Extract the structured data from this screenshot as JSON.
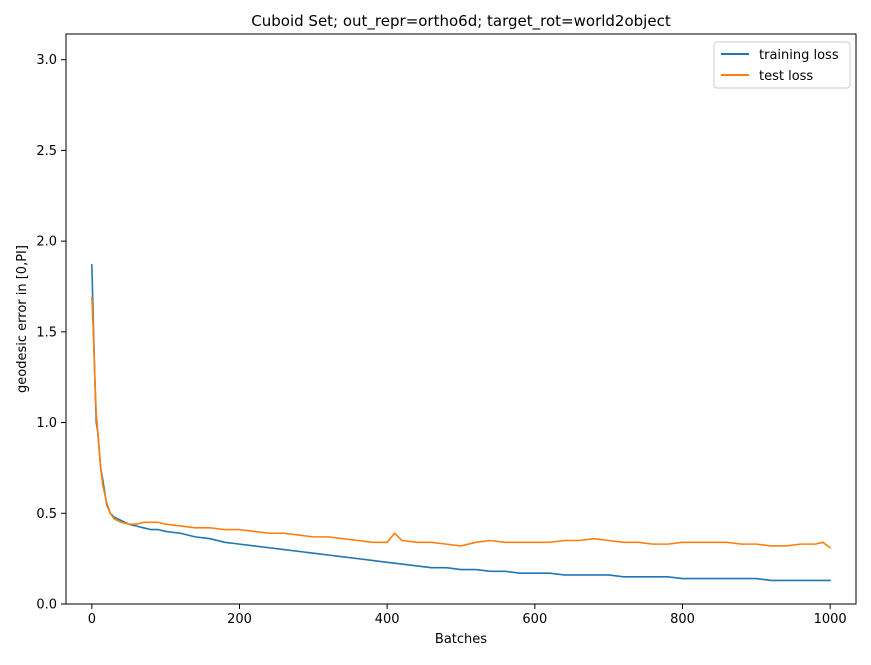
{
  "chart_data": {
    "type": "line",
    "title": "Cuboid Set; out_repr=ortho6d; target_rot=world2object",
    "xlabel": "Batches",
    "ylabel": "geodesic error in [0,PI]",
    "xlim": [
      -35,
      1035
    ],
    "ylim": [
      0,
      3.1416
    ],
    "xticks": [
      0,
      200,
      400,
      600,
      800,
      1000
    ],
    "xtick_labels": [
      "0",
      "200",
      "400",
      "600",
      "800",
      "1000"
    ],
    "yticks": [
      0.0,
      0.5,
      1.0,
      1.5,
      2.0,
      2.5,
      3.0
    ],
    "ytick_labels": [
      "0.0",
      "0.5",
      "1.0",
      "1.5",
      "2.0",
      "2.5",
      "3.0"
    ],
    "grid": false,
    "legend_position": "top-right",
    "series": [
      {
        "name": "training loss",
        "color": "#1f77b4",
        "x": [
          0,
          2,
          4,
          6,
          8,
          10,
          12,
          15,
          20,
          25,
          30,
          40,
          50,
          60,
          70,
          80,
          90,
          100,
          120,
          140,
          160,
          180,
          200,
          220,
          240,
          260,
          280,
          300,
          320,
          340,
          360,
          380,
          400,
          420,
          440,
          460,
          480,
          500,
          520,
          540,
          560,
          580,
          600,
          620,
          640,
          660,
          680,
          700,
          720,
          740,
          760,
          780,
          800,
          820,
          840,
          860,
          880,
          900,
          920,
          940,
          960,
          980,
          1000
        ],
        "values": [
          1.87,
          1.55,
          1.25,
          1.0,
          0.95,
          0.85,
          0.75,
          0.68,
          0.55,
          0.5,
          0.48,
          0.46,
          0.44,
          0.43,
          0.42,
          0.41,
          0.41,
          0.4,
          0.39,
          0.37,
          0.36,
          0.34,
          0.33,
          0.32,
          0.31,
          0.3,
          0.29,
          0.28,
          0.27,
          0.26,
          0.25,
          0.24,
          0.23,
          0.22,
          0.21,
          0.2,
          0.2,
          0.19,
          0.19,
          0.18,
          0.18,
          0.17,
          0.17,
          0.17,
          0.16,
          0.16,
          0.16,
          0.16,
          0.15,
          0.15,
          0.15,
          0.15,
          0.14,
          0.14,
          0.14,
          0.14,
          0.14,
          0.14,
          0.13,
          0.13,
          0.13,
          0.13,
          0.13
        ]
      },
      {
        "name": "test loss",
        "color": "#ff7f0e",
        "x": [
          0,
          2,
          4,
          6,
          8,
          10,
          12,
          15,
          20,
          25,
          30,
          40,
          50,
          60,
          70,
          80,
          90,
          100,
          120,
          140,
          160,
          180,
          200,
          220,
          240,
          260,
          280,
          300,
          320,
          340,
          360,
          380,
          400,
          410,
          420,
          440,
          460,
          480,
          500,
          520,
          540,
          560,
          580,
          600,
          620,
          640,
          660,
          680,
          700,
          720,
          740,
          760,
          780,
          800,
          820,
          840,
          860,
          880,
          900,
          920,
          940,
          960,
          980,
          990,
          1000
        ],
        "values": [
          1.69,
          1.5,
          1.25,
          1.05,
          0.95,
          0.85,
          0.75,
          0.65,
          0.56,
          0.5,
          0.47,
          0.45,
          0.44,
          0.44,
          0.45,
          0.45,
          0.45,
          0.44,
          0.43,
          0.42,
          0.42,
          0.41,
          0.41,
          0.4,
          0.39,
          0.39,
          0.38,
          0.37,
          0.37,
          0.36,
          0.35,
          0.34,
          0.34,
          0.39,
          0.35,
          0.34,
          0.34,
          0.33,
          0.32,
          0.34,
          0.35,
          0.34,
          0.34,
          0.34,
          0.34,
          0.35,
          0.35,
          0.36,
          0.35,
          0.34,
          0.34,
          0.33,
          0.33,
          0.34,
          0.34,
          0.34,
          0.34,
          0.33,
          0.33,
          0.32,
          0.32,
          0.33,
          0.33,
          0.34,
          0.31
        ]
      }
    ]
  }
}
